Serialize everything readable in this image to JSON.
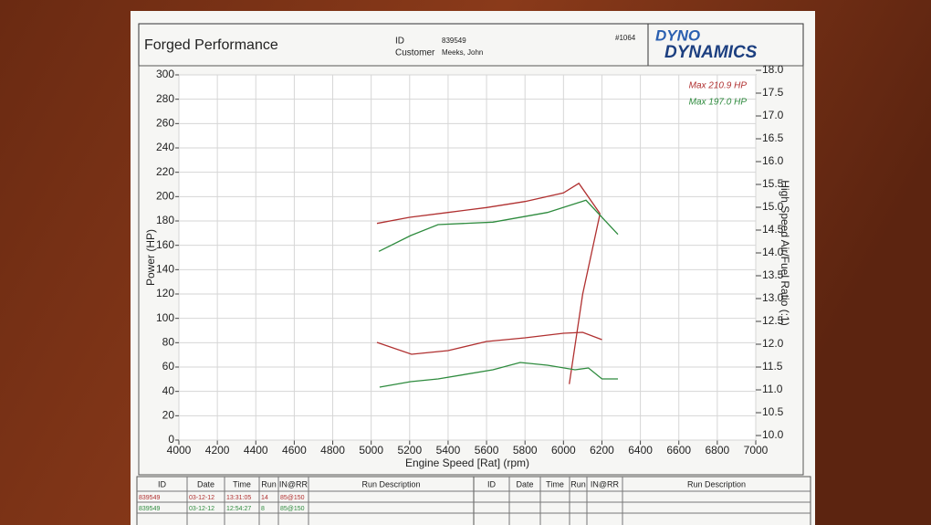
{
  "header": {
    "title": "Forged Performance",
    "id_label": "ID",
    "id": "839549",
    "customer_label": "Customer",
    "customer": "Meeks, John",
    "number": "#1064",
    "logo_top": "DYNO",
    "logo_bottom": "DYNAMICS"
  },
  "chart_data": {
    "type": "line",
    "xlabel": "Engine Speed [Rat] (rpm)",
    "ylabel": "Power (HP)",
    "y2label": "High Speed Air/Fuel Ratio (:1)",
    "xlim": [
      4000,
      7000
    ],
    "xticks": [
      4000,
      4200,
      4400,
      4600,
      4800,
      5000,
      5200,
      5400,
      5600,
      5800,
      6000,
      6200,
      6400,
      6600,
      6800,
      7000
    ],
    "ylim": [
      0,
      300
    ],
    "yticks": [
      0,
      20,
      40,
      60,
      80,
      100,
      120,
      140,
      160,
      180,
      200,
      220,
      240,
      260,
      280,
      300
    ],
    "y2lim": [
      10,
      18
    ],
    "y2ticks": [
      {
        "value": 10,
        "label": "10.0"
      },
      10.5,
      {
        "value": 11,
        "label": "11.0"
      },
      11.5,
      {
        "value": 12,
        "label": "12.0"
      },
      12.5,
      {
        "value": 13,
        "label": "13.0"
      },
      13.5,
      {
        "value": 14,
        "label": "14.0"
      },
      14.5,
      {
        "value": 15,
        "label": "15.0"
      },
      15.5,
      {
        "value": 16,
        "label": "16.0"
      },
      16.5,
      {
        "value": 17,
        "label": "17.0"
      },
      17.5,
      {
        "value": 18,
        "label": "18.0"
      }
    ],
    "grid": true,
    "annotations": [
      {
        "text": "Max 210.9 HP",
        "color": "#b03030"
      },
      {
        "text": "Max 197.0 HP",
        "color": "#2e8b3e"
      }
    ],
    "series": [
      {
        "color": "#b03030",
        "axis": "y",
        "x": [
          5030,
          5200,
          5400,
          5600,
          5800,
          6000,
          6080,
          6190,
          null,
          6030,
          6100,
          6190
        ],
        "values": [
          178,
          183,
          187,
          191,
          196,
          203,
          210.9,
          186,
          null,
          46,
          120,
          186
        ]
      },
      {
        "color": "#2e8b3e",
        "axis": "y",
        "x": [
          5040,
          5205,
          5348,
          5633,
          5917,
          6117,
          6283
        ],
        "values": [
          155,
          168,
          177,
          179,
          187,
          197,
          169
        ]
      },
      {
        "color": "#b03030",
        "axis": "y2",
        "x": [
          5030,
          5210,
          5400,
          5600,
          5800,
          6000,
          6100,
          6200
        ],
        "values": [
          12.04,
          11.78,
          11.86,
          12.06,
          12.14,
          12.24,
          12.26,
          12.1
        ]
      },
      {
        "color": "#2e8b3e",
        "axis": "y2",
        "x": [
          5044,
          5205,
          5348,
          5633,
          5775,
          5917,
          6060,
          6130,
          6200,
          6283
        ],
        "values": [
          11.06,
          11.18,
          11.24,
          11.44,
          11.6,
          11.54,
          11.44,
          11.48,
          11.24,
          11.24
        ]
      }
    ]
  },
  "table": {
    "columns": [
      "ID",
      "Date",
      "Time",
      "Run",
      "IN@RR",
      "Run Description"
    ],
    "rows": [
      [
        "839549",
        "03-12-12",
        "13:31:05",
        "14",
        "85@150"
      ],
      [
        "839549",
        "03-12-12",
        "12:54:27",
        "8",
        "85@150"
      ]
    ]
  },
  "table_right": {
    "columns": [
      "ID",
      "Date",
      "Time",
      "Run",
      "IN@RR",
      "Run Description"
    ]
  }
}
